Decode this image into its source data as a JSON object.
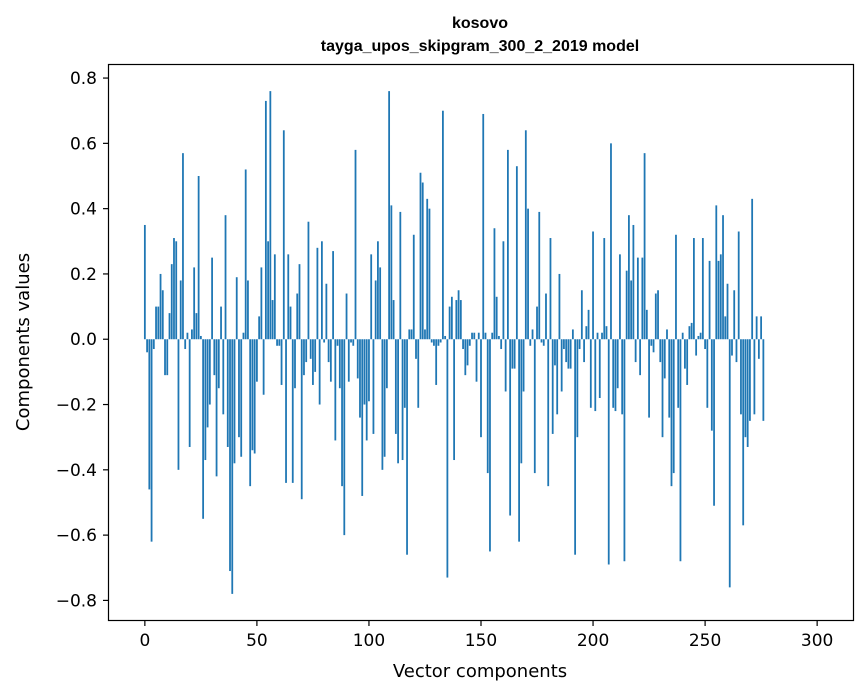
{
  "chart_data": {
    "type": "bar",
    "title": "kosovo",
    "subtitle": "tayga_upos_skipgram_300_2_2019 model",
    "xlabel": "Vector components",
    "ylabel": "Components values",
    "xlim": [
      -16,
      316
    ],
    "ylim": [
      -0.86,
      0.84
    ],
    "xticks": [
      0,
      50,
      100,
      150,
      200,
      250,
      300
    ],
    "xtick_labels": [
      "0",
      "50",
      "100",
      "150",
      "200",
      "250",
      "300"
    ],
    "yticks": [
      0.8,
      0.6,
      0.4,
      0.2,
      0.0,
      -0.2,
      -0.4,
      -0.6,
      -0.8
    ],
    "ytick_labels": [
      "0.8",
      "0.6",
      "0.4",
      "0.2",
      "0.0",
      "−0.2",
      "−0.4",
      "−0.6",
      "−0.8"
    ],
    "bar_color": "#1f77b4",
    "values": [
      0.35,
      -0.04,
      -0.46,
      -0.62,
      -0.03,
      0.1,
      0.1,
      0.2,
      0.15,
      -0.11,
      -0.11,
      0.08,
      0.23,
      0.31,
      0.3,
      -0.4,
      0.18,
      0.57,
      -0.03,
      0.02,
      -0.33,
      0.03,
      0.22,
      0.08,
      0.5,
      0.01,
      -0.55,
      -0.37,
      -0.27,
      -0.2,
      0.25,
      -0.11,
      -0.42,
      -0.15,
      0.1,
      -0.23,
      0.38,
      -0.33,
      -0.71,
      -0.78,
      -0.38,
      0.19,
      -0.3,
      -0.36,
      0.02,
      0.52,
      0.18,
      -0.45,
      -0.34,
      -0.35,
      -0.13,
      0.07,
      0.22,
      -0.17,
      0.73,
      0.3,
      0.76,
      0.12,
      0.26,
      -0.02,
      -0.02,
      -0.14,
      0.64,
      -0.44,
      0.26,
      0.1,
      -0.44,
      -0.15,
      0.14,
      0.23,
      -0.49,
      -0.11,
      -0.07,
      0.36,
      -0.06,
      -0.14,
      -0.1,
      0.28,
      -0.2,
      0.3,
      -0.01,
      0.17,
      -0.07,
      -0.13,
      0.27,
      -0.31,
      -0.02,
      -0.15,
      -0.45,
      -0.6,
      0.14,
      -0.13,
      -0.01,
      -0.02,
      0.58,
      -0.12,
      -0.24,
      -0.48,
      -0.2,
      -0.31,
      -0.19,
      0.26,
      -0.29,
      0.18,
      0.3,
      0.22,
      -0.4,
      -0.36,
      -0.15,
      0.76,
      0.41,
      0.12,
      -0.29,
      -0.38,
      0.39,
      -0.37,
      -0.21,
      -0.66,
      0.03,
      0.03,
      0.32,
      -0.06,
      -0.21,
      0.51,
      0.48,
      0.03,
      0.43,
      0.4,
      -0.01,
      -0.02,
      -0.14,
      -0.02,
      -0.01,
      0.7,
      0.01,
      -0.73,
      0.1,
      0.13,
      -0.37,
      0.12,
      0.15,
      0.12,
      -0.03,
      -0.11,
      -0.08,
      -0.02,
      0.02,
      0.02,
      -0.13,
      0.02,
      -0.3,
      0.69,
      0.02,
      -0.41,
      -0.65,
      0.02,
      0.34,
      0.13,
      0.01,
      -0.03,
      0.3,
      -0.16,
      0.58,
      -0.54,
      -0.09,
      -0.09,
      0.53,
      -0.62,
      -0.38,
      -0.16,
      0.64,
      0.4,
      -0.02,
      0.03,
      -0.41,
      0.1,
      0.39,
      -0.01,
      -0.02,
      0.14,
      -0.45,
      0.31,
      -0.29,
      -0.08,
      -0.23,
      0.2,
      -0.16,
      -0.03,
      -0.07,
      -0.09,
      -0.09,
      0.03,
      -0.66,
      -0.3,
      -0.03,
      0.15,
      -0.07,
      0.04,
      0.09,
      -0.21,
      0.33,
      -0.22,
      0.02,
      -0.18,
      0.02,
      0.31,
      0.04,
      -0.69,
      0.6,
      -0.21,
      -0.22,
      -0.15,
      0.26,
      -0.23,
      -0.68,
      0.21,
      0.38,
      0.18,
      0.35,
      -0.07,
      0.25,
      -0.11,
      0.25,
      0.57,
      0.09,
      -0.24,
      -0.02,
      -0.04,
      0.14,
      0.15,
      -0.07,
      -0.3,
      -0.12,
      0.03,
      -0.24,
      -0.45,
      -0.41,
      0.32,
      -0.21,
      -0.68,
      0.02,
      -0.09,
      -0.14,
      0.04,
      0.05,
      0.31,
      -0.05,
      0.01,
      0.02,
      0.31,
      -0.03,
      -0.21,
      0.24,
      -0.28,
      -0.51,
      0.41,
      0.24,
      0.26,
      0.38,
      0.07,
      0.17,
      -0.76,
      -0.05,
      0.15,
      -0.07,
      0.33,
      -0.23,
      -0.57,
      -0.3,
      -0.33,
      -0.25,
      0.43,
      -0.23,
      0.07,
      -0.06,
      0.07,
      -0.25
    ]
  }
}
